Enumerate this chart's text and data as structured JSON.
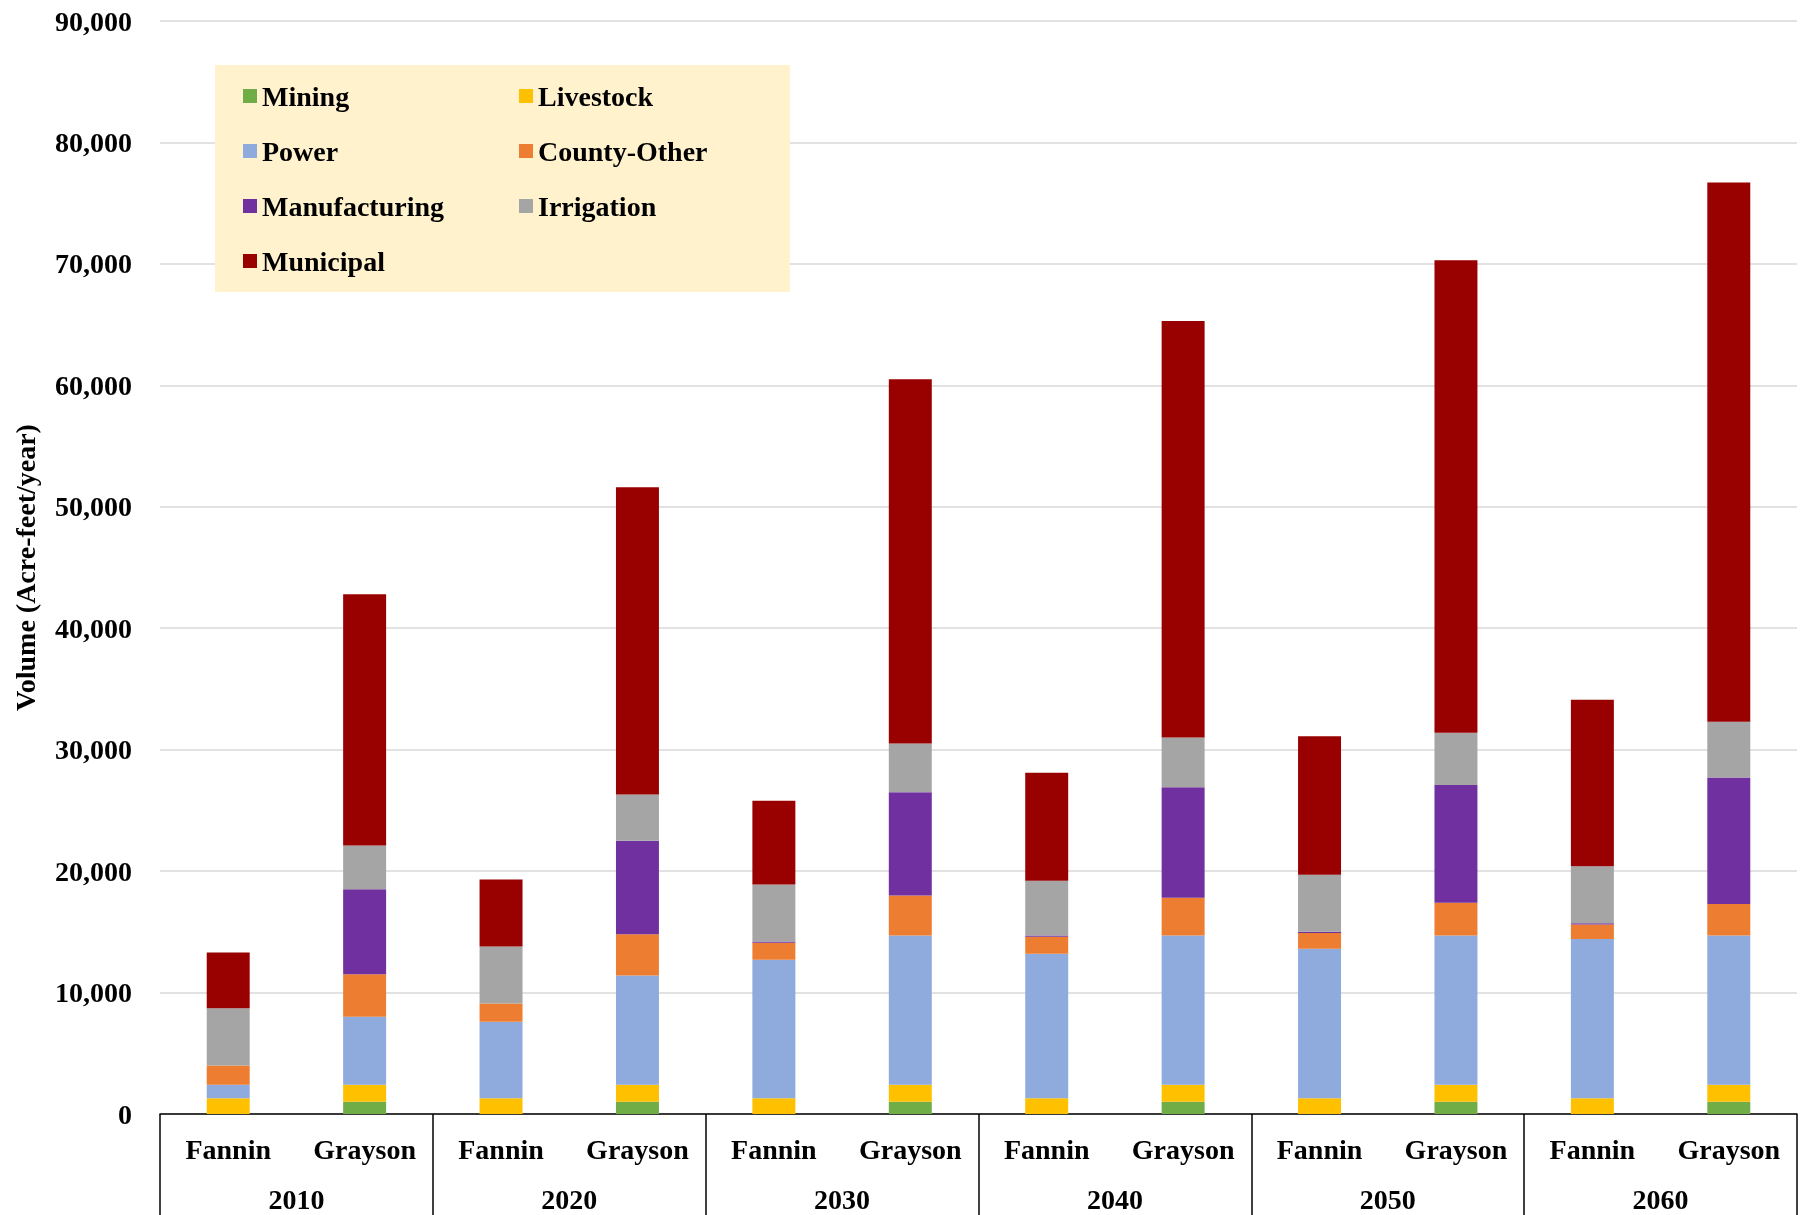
{
  "chart_data": {
    "type": "bar",
    "stacked": true,
    "ylabel": "Volume (Acre-feet/year)",
    "categories": [
      "Fannin",
      "Grayson",
      "Fannin",
      "Grayson",
      "Fannin",
      "Grayson",
      "Fannin",
      "Grayson",
      "Fannin",
      "Grayson",
      "Fannin",
      "Grayson"
    ],
    "annotations": [
      "2010",
      "2020",
      "2030",
      "2040",
      "2050",
      "2060"
    ],
    "series": [
      {
        "name": "Mining",
        "color": "#70ad47",
        "values": [
          null,
          1000,
          null,
          1000,
          null,
          1000,
          null,
          1000,
          null,
          1000,
          null,
          1000
        ]
      },
      {
        "name": "Livestock",
        "color": "#ffc000",
        "values": [
          1300,
          1400,
          1300,
          1400,
          1300,
          1400,
          1300,
          1400,
          1300,
          1400,
          1300,
          1400
        ]
      },
      {
        "name": "Power",
        "color": "#8faadc",
        "values": [
          1100,
          5600,
          6300,
          9000,
          11400,
          12300,
          11900,
          12300,
          12300,
          12300,
          13100,
          12300
        ]
      },
      {
        "name": "County-Other",
        "color": "#ed7d31",
        "values": [
          1600,
          3500,
          1500,
          3400,
          1400,
          3300,
          1400,
          3100,
          1300,
          2700,
          1200,
          2600
        ]
      },
      {
        "name": "Manufacturing",
        "color": "#7030a0",
        "values": [
          null,
          7000,
          null,
          7700,
          100,
          8500,
          100,
          9100,
          100,
          9700,
          100,
          10400
        ]
      },
      {
        "name": "Irrigation",
        "color": "#a5a5a5",
        "values": [
          4700,
          3600,
          4700,
          3800,
          4700,
          4000,
          4500,
          4100,
          4700,
          4300,
          4700,
          4600
        ]
      },
      {
        "name": "Municipal",
        "color": "#990000",
        "values": [
          4600,
          20700,
          5500,
          25300,
          6900,
          30000,
          8900,
          34300,
          11400,
          38900,
          13700,
          44400
        ]
      }
    ],
    "ylim": [
      0,
      90000
    ],
    "yticks": [
      0,
      {
        "value": 10000,
        "label": "10,000"
      },
      {
        "value": 20000,
        "label": "20,000"
      },
      {
        "value": 30000,
        "label": "30,000"
      },
      {
        "value": 40000,
        "label": "40,000"
      },
      {
        "value": 50000,
        "label": "50,000"
      },
      {
        "value": 60000,
        "label": "60,000"
      },
      {
        "value": 70000,
        "label": "70,000"
      },
      {
        "value": 80000,
        "label": "80,000"
      },
      {
        "value": 90000,
        "label": "90,000"
      }
    ],
    "grid": "y",
    "legend": "top left"
  }
}
